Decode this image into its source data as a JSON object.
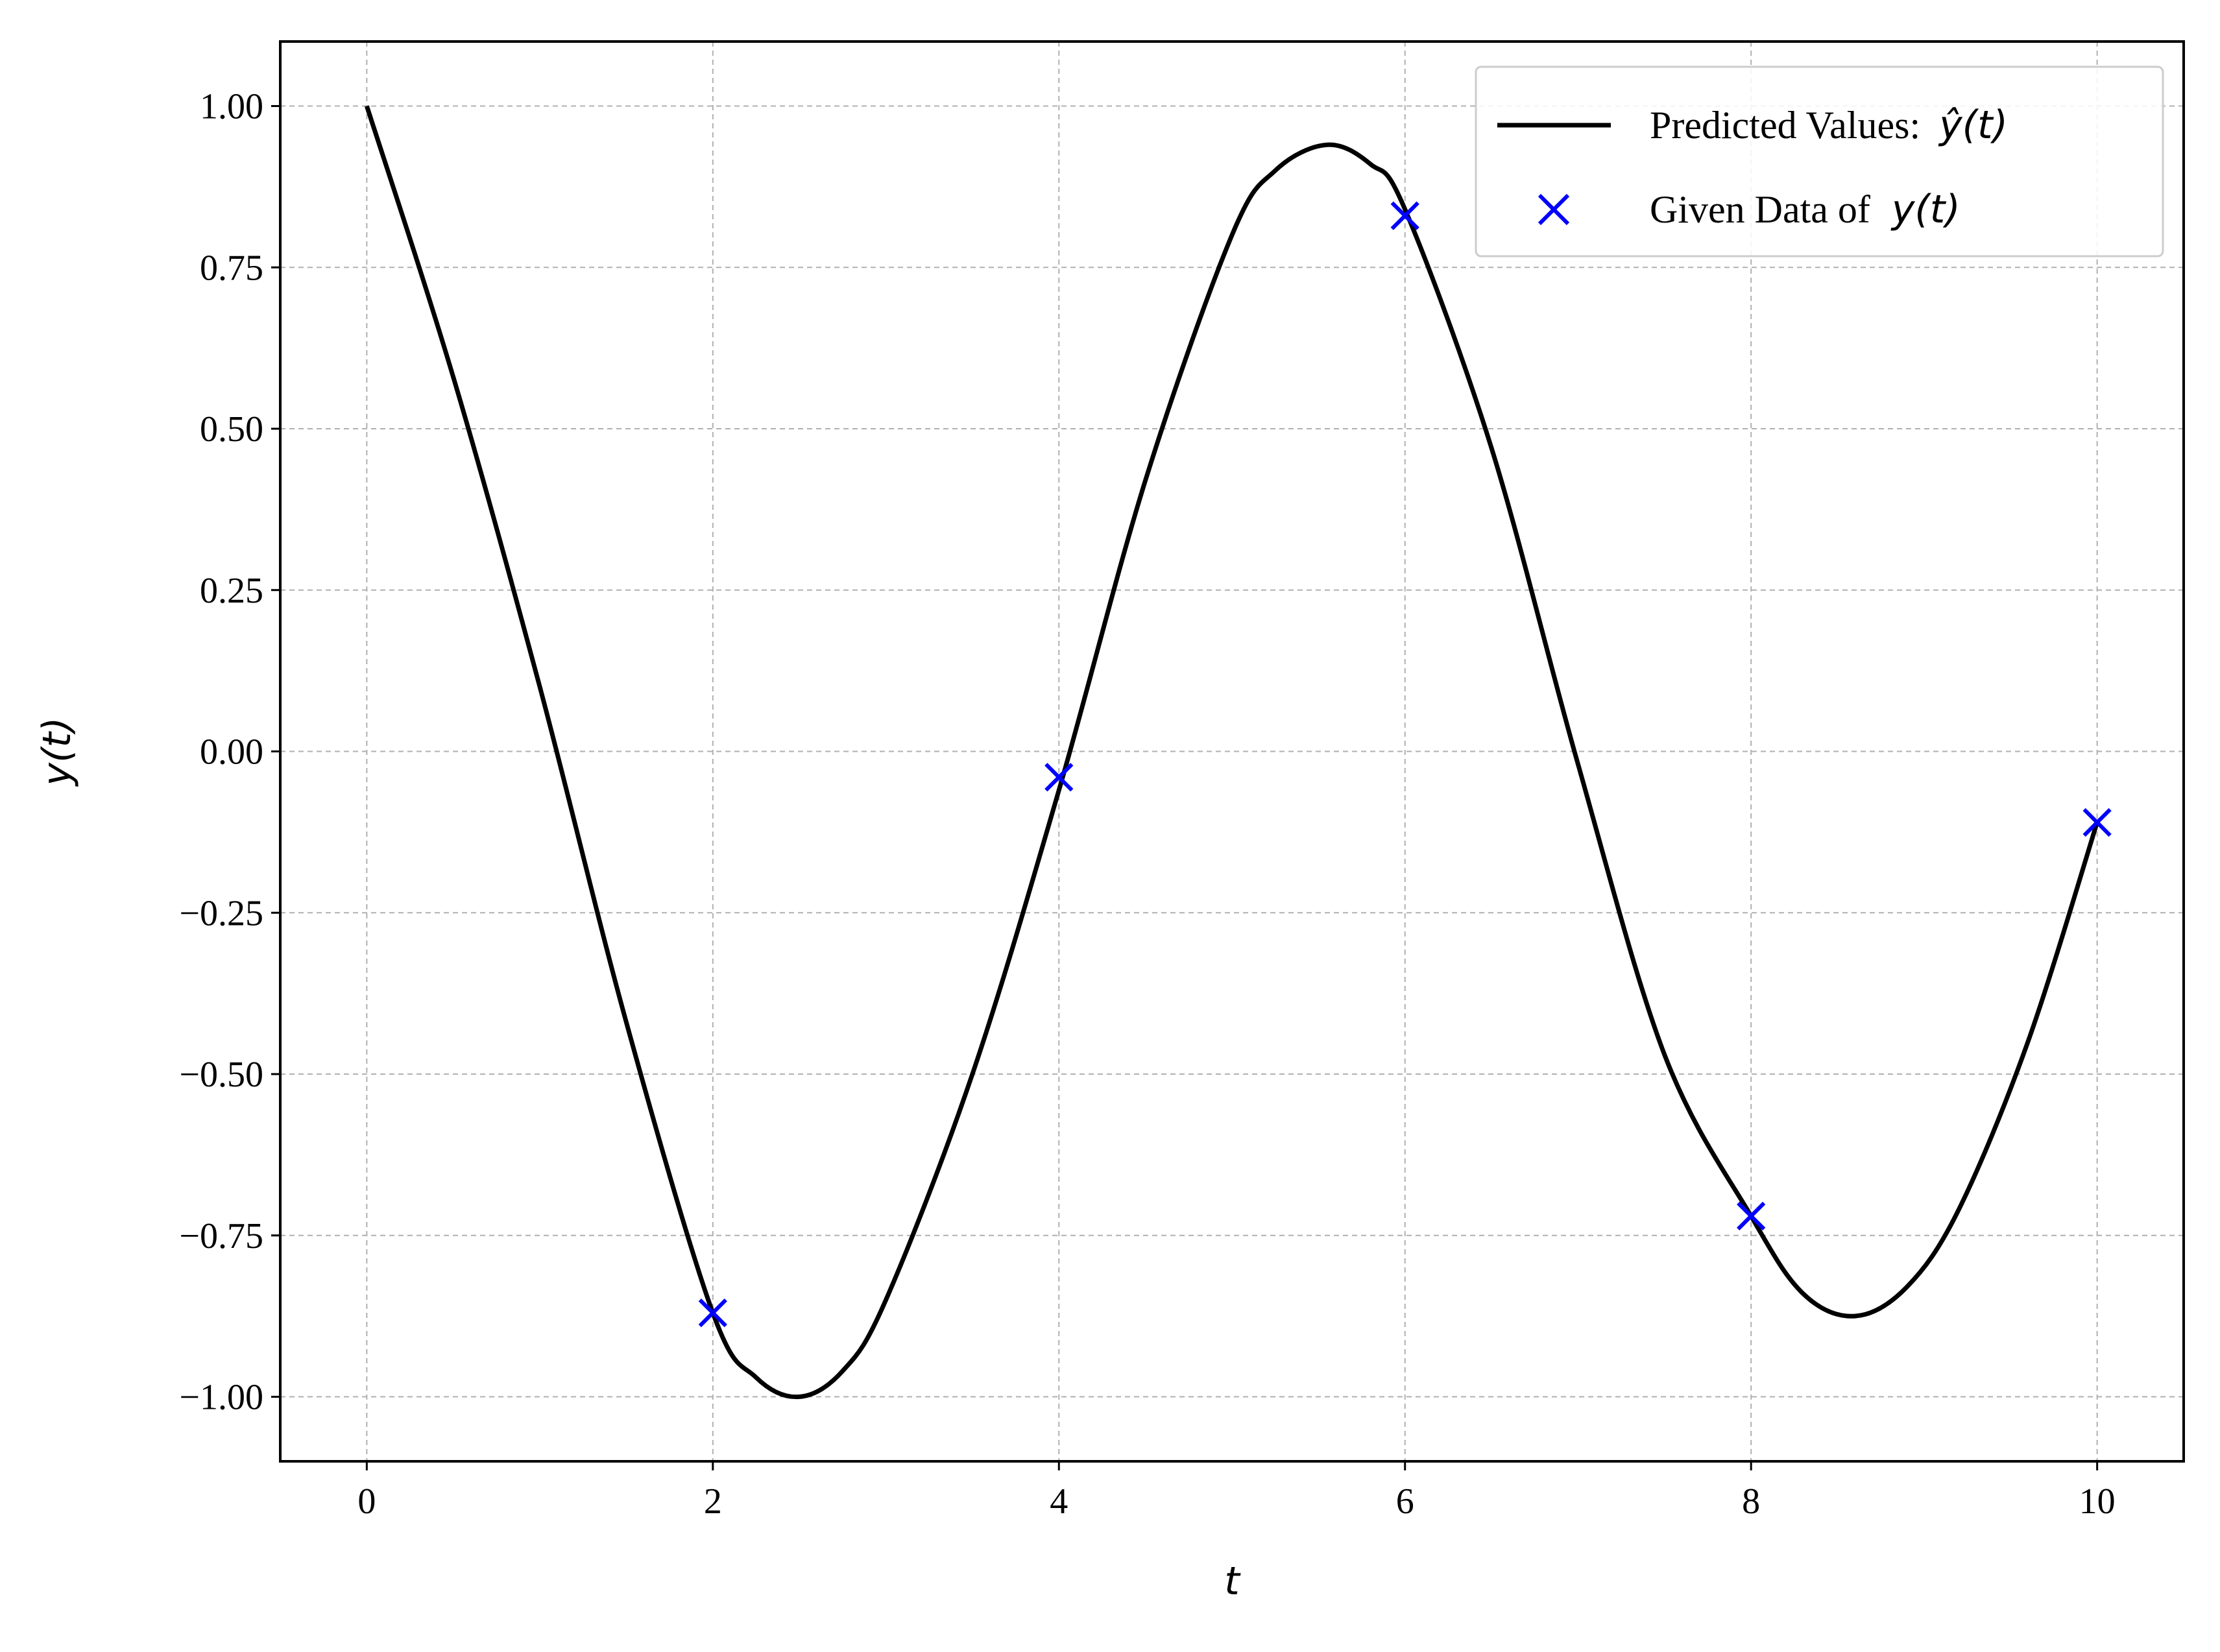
{
  "chart_data": {
    "type": "line",
    "xlabel": "t",
    "ylabel": "y(t)",
    "xlim": [
      -0.5,
      10.5
    ],
    "ylim": [
      -1.1,
      1.1
    ],
    "grid": true,
    "legend_position": "top-right",
    "x_ticks": [
      0,
      2,
      4,
      6,
      8,
      10
    ],
    "x_tick_labels": [
      "0",
      "2",
      "4",
      "6",
      "8",
      "10"
    ],
    "y_ticks": [
      1.0,
      0.75,
      0.5,
      0.25,
      0.0,
      -0.25,
      -0.5,
      -0.75,
      -1.0
    ],
    "y_tick_labels": [
      "1.00",
      "0.75",
      "0.50",
      "0.25",
      "0.00",
      "−0.25",
      "−0.50",
      "−0.75",
      "−1.00"
    ],
    "series": [
      {
        "name": "Predicted Values: ŷ(t)",
        "legend_prefix": "Predicted Values:",
        "legend_math": "ŷ(t)",
        "kind": "line",
        "color": "#000000",
        "x": [
          0,
          0.5,
          1.0,
          1.5,
          2.0,
          2.25,
          2.5,
          2.75,
          3.0,
          3.5,
          4.0,
          4.5,
          5.0,
          5.25,
          5.55,
          5.8,
          6.0,
          6.5,
          7.0,
          7.5,
          8.0,
          8.3,
          8.6,
          8.9,
          9.2,
          9.6,
          10.0
        ],
        "y": [
          1.0,
          0.58,
          0.1,
          -0.42,
          -0.87,
          -0.97,
          -1.0,
          -0.96,
          -0.85,
          -0.5,
          -0.06,
          0.42,
          0.8,
          0.9,
          0.94,
          0.91,
          0.84,
          0.47,
          -0.02,
          -0.47,
          -0.72,
          -0.84,
          -0.875,
          -0.83,
          -0.71,
          -0.45,
          -0.11
        ]
      },
      {
        "name": "Given Data of y(t)",
        "legend_prefix": "Given Data of",
        "legend_math": "y(t)",
        "kind": "scatter",
        "marker": "x",
        "color": "#0000ff",
        "x": [
          2,
          4,
          6,
          8,
          10
        ],
        "y": [
          -0.87,
          -0.04,
          0.83,
          -0.72,
          -0.11
        ]
      }
    ]
  }
}
